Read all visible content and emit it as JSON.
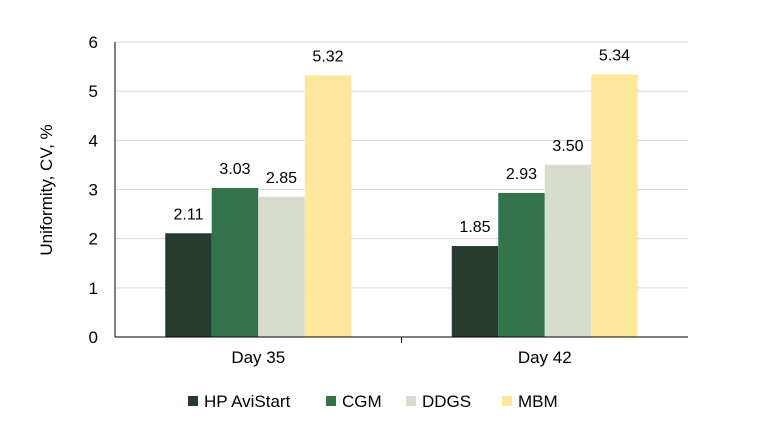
{
  "chart_data": {
    "type": "bar",
    "categories": [
      "Day 35",
      "Day 42"
    ],
    "series": [
      {
        "name": "HP AviStart",
        "values": [
          2.11,
          1.85
        ],
        "color": "#263a2e"
      },
      {
        "name": "CGM",
        "values": [
          3.03,
          2.93
        ],
        "color": "#32734a"
      },
      {
        "name": "DDGS",
        "values": [
          2.85,
          3.5
        ],
        "color": "#d6ddcc"
      },
      {
        "name": "MBM",
        "values": [
          5.32,
          5.34
        ],
        "color": "#fee79a"
      }
    ],
    "data_labels": [
      [
        "2.11",
        "1.85"
      ],
      [
        "3.03",
        "2.93"
      ],
      [
        "2.85",
        "3.50"
      ],
      [
        "5.32",
        "5.34"
      ]
    ],
    "xlabel": "",
    "ylabel": "Uniformity, CV, %",
    "ylim": [
      0,
      6
    ],
    "yticks": [
      "0",
      "1",
      "2",
      "3",
      "4",
      "5",
      "6"
    ],
    "grid": true,
    "legend": "bottom"
  }
}
